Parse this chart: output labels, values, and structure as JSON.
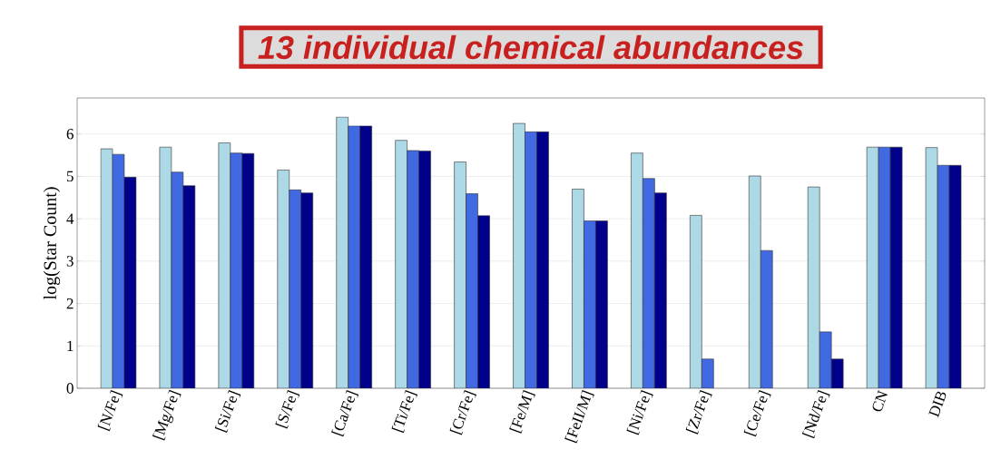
{
  "chart_data": {
    "type": "bar",
    "ylabel": "log(Star Count)",
    "categories": [
      "[N/Fe]",
      "[Mg/Fe]",
      "[Si/Fe]",
      "[S/Fe]",
      "[Ca/Fe]",
      "[Ti/Fe]",
      "[Cr/Fe]",
      "[Fe/M]",
      "[FeII/M]",
      "[Ni/Fe]",
      "[Zr/Fe]",
      "[Ce/Fe]",
      "[Nd/Fe]",
      "CN",
      "DIB"
    ],
    "series": [
      {
        "color": "#add8e6",
        "values": [
          5.65,
          5.69,
          5.79,
          5.15,
          6.4,
          5.85,
          5.34,
          6.25,
          4.7,
          5.55,
          4.08,
          5.01,
          4.75,
          5.69,
          5.68
        ]
      },
      {
        "color": "#4169e1",
        "values": [
          5.52,
          5.1,
          5.55,
          4.68,
          6.19,
          5.61,
          4.59,
          6.05,
          3.95,
          4.95,
          0.69,
          3.25,
          1.33,
          5.69,
          5.26
        ]
      },
      {
        "color": "#00008b",
        "values": [
          4.98,
          4.78,
          5.54,
          4.61,
          6.19,
          5.6,
          4.07,
          6.05,
          3.95,
          4.61,
          null,
          null,
          0.69,
          5.69,
          5.26
        ]
      }
    ],
    "ylim": [
      0,
      6.85
    ],
    "yticks": [
      0,
      1,
      2,
      3,
      4,
      5,
      6
    ],
    "grid": "y",
    "annotations": [
      "13 individual chemical abundances"
    ]
  }
}
